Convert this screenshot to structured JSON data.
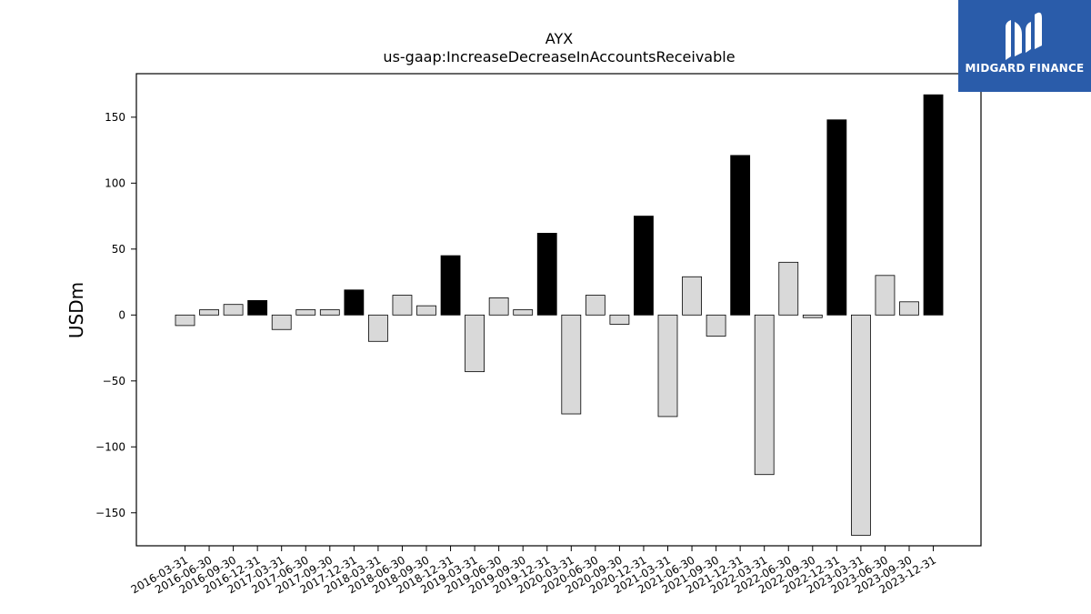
{
  "chart_data": {
    "type": "bar",
    "title": "AYX",
    "subtitle": "us-gaap:IncreaseDecreaseInAccountsReceivable",
    "ylabel": "USDm",
    "xlabel": "",
    "ylim": [
      -175,
      183
    ],
    "yticks": [
      -150,
      -100,
      -50,
      0,
      50,
      100,
      150
    ],
    "categories": [
      "2016-03-31",
      "2016-06-30",
      "2016-09-30",
      "2016-12-31",
      "2017-03-31",
      "2017-06-30",
      "2017-09-30",
      "2017-12-31",
      "2018-03-31",
      "2018-06-30",
      "2018-09-30",
      "2018-12-31",
      "2019-03-31",
      "2019-06-30",
      "2019-09-30",
      "2019-12-31",
      "2020-03-31",
      "2020-06-30",
      "2020-09-30",
      "2020-12-31",
      "2021-03-31",
      "2021-06-30",
      "2021-09-30",
      "2021-12-31",
      "2022-03-31",
      "2022-06-30",
      "2022-09-30",
      "2022-12-31",
      "2023-03-31",
      "2023-06-30",
      "2023-09-30",
      "2023-12-31"
    ],
    "values": [
      -8,
      4,
      8,
      11,
      -11,
      4,
      4,
      19,
      -20,
      15,
      7,
      45,
      -43,
      13,
      4,
      62,
      -75,
      15,
      -7,
      75,
      -77,
      29,
      -16,
      121,
      -121,
      40,
      -2,
      148,
      -167,
      30,
      10,
      167
    ],
    "highlight_q4": true,
    "colors": {
      "q4": "#000000",
      "other": "#d9d9d9",
      "edge": "#000000"
    },
    "grid": false,
    "legend": "none"
  },
  "logo": {
    "text": "MIDGARD FINANCE",
    "bg": "#2a5caa"
  }
}
